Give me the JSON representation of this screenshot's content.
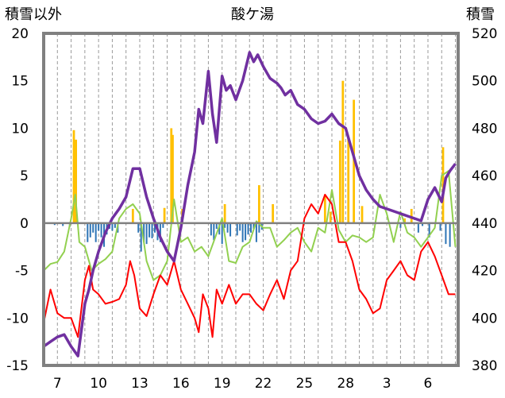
{
  "chart_data": {
    "type": "line",
    "title": "酸ケ湯",
    "ylabel_left": "積雪以外",
    "ylabel_right": "積雪",
    "ylim_left": [
      -15,
      20
    ],
    "ylim_right": [
      380,
      520
    ],
    "y_ticks_left": [
      -15,
      -10,
      -5,
      0,
      5,
      10,
      15,
      20
    ],
    "y_ticks_right": [
      380,
      400,
      420,
      440,
      460,
      480,
      500,
      520
    ],
    "x_tick_labels": [
      "7",
      "10",
      "13",
      "16",
      "19",
      "22",
      "25",
      "28",
      "3",
      "6"
    ],
    "x_tick_days": [
      1,
      4,
      7,
      10,
      13,
      16,
      19,
      22,
      25,
      28
    ],
    "x_range_days": [
      0,
      30.2
    ],
    "grid": "vertical dashed at each day",
    "colors": {
      "snow_depth": "#7030a0",
      "temp_max": "#92d050",
      "temp_min": "#ff0000",
      "snowfall": "#ffc000",
      "snow_change_negative": "#2e75b6",
      "zero_line": "#808080",
      "frame": "#808080"
    },
    "series": [
      {
        "key": "snow_depth",
        "axis": "right",
        "style": "line",
        "x": [
          0,
          0.5,
          1,
          1.5,
          2,
          2.5,
          3,
          3.3,
          3.6,
          4,
          4.5,
          5,
          5.5,
          6,
          6.5,
          7,
          7.5,
          8,
          8.5,
          9,
          9.5,
          10,
          10.5,
          11,
          11.3,
          11.6,
          12,
          12.3,
          12.6,
          13,
          13.3,
          13.6,
          14,
          14.5,
          15,
          15.3,
          15.6,
          16,
          16.5,
          17,
          17.3,
          17.6,
          18,
          18.5,
          19,
          19.5,
          20,
          20.5,
          21,
          21.5,
          22,
          22.5,
          23,
          23.5,
          24,
          24.5,
          25,
          25.5,
          26,
          26.5,
          27,
          27.5,
          28,
          28.5,
          29,
          29.3,
          29.6,
          30
        ],
        "values": [
          388,
          390,
          392,
          393,
          388,
          384,
          406,
          412,
          420,
          428,
          436,
          442,
          446,
          451,
          463,
          463,
          451,
          442,
          434,
          428,
          424,
          438,
          456,
          470,
          488,
          482,
          504,
          486,
          474,
          502,
          496,
          498,
          492,
          500,
          512,
          508,
          511,
          506,
          501,
          499,
          497,
          494,
          496,
          490,
          488,
          484,
          482,
          483,
          486,
          482,
          480,
          470,
          460,
          454,
          450,
          447,
          446,
          445,
          444,
          443,
          442,
          441,
          450,
          455,
          449,
          459,
          462,
          465
        ]
      },
      {
        "key": "temp_max",
        "axis": "left",
        "style": "line",
        "x": [
          0,
          0.5,
          1,
          1.5,
          2,
          2.3,
          2.6,
          3,
          3.5,
          4,
          4.5,
          5,
          5.5,
          6,
          6.5,
          7,
          7.5,
          8,
          8.5,
          9,
          9.5,
          10,
          10.5,
          11,
          11.5,
          12,
          12.5,
          13,
          13.5,
          14,
          14.5,
          15,
          15.5,
          16,
          16.5,
          17,
          17.5,
          18,
          18.5,
          19,
          19.5,
          20,
          20.5,
          21,
          21.5,
          22,
          22.5,
          23,
          23.5,
          24,
          24.5,
          25,
          25.5,
          26,
          26.5,
          27,
          27.5,
          28,
          28.5,
          29,
          29.5,
          30
        ],
        "values": [
          -5,
          -4.3,
          -4.1,
          -3,
          0.5,
          3,
          -2,
          -2.5,
          -5,
          -4.3,
          -3.8,
          -3,
          0.5,
          1.5,
          2,
          1,
          -4,
          -6,
          -5.5,
          -4,
          2.5,
          -2,
          -1.5,
          -3,
          -2.5,
          -3.5,
          -1.5,
          0.5,
          -4,
          -4.2,
          -2.5,
          -2,
          0.2,
          -0.5,
          -0.5,
          -2.5,
          -1.8,
          -1,
          -0.5,
          -2,
          -3,
          -0.5,
          -1,
          3.5,
          -0.7,
          -2,
          -1.3,
          -1.5,
          -2,
          -1.5,
          3,
          1,
          -2,
          1.2,
          -1,
          -1.5,
          -2.5,
          -1.5,
          -0.5,
          5,
          5.5,
          -2.5
        ]
      },
      {
        "key": "temp_min",
        "axis": "left",
        "style": "line",
        "x": [
          0,
          0.5,
          1,
          1.5,
          2,
          2.5,
          3,
          3.3,
          3.6,
          4,
          4.5,
          5,
          5.5,
          6,
          6.3,
          6.6,
          7,
          7.5,
          8,
          8.5,
          9,
          9.5,
          10,
          10.5,
          11,
          11.3,
          11.6,
          12,
          12.3,
          12.6,
          13,
          13.5,
          14,
          14.5,
          15,
          15.5,
          16,
          16.5,
          17,
          17.5,
          18,
          18.5,
          19,
          19.5,
          20,
          20.5,
          21,
          21.5,
          22,
          22.5,
          23,
          23.5,
          24,
          24.5,
          25,
          25.5,
          26,
          26.5,
          27,
          27.5,
          28,
          28.5,
          29,
          29.5,
          30
        ],
        "values": [
          -10.5,
          -7,
          -9.5,
          -10,
          -10,
          -12,
          -6,
          -4.5,
          -7,
          -7.5,
          -8.5,
          -8.3,
          -8,
          -6.5,
          -4,
          -5.5,
          -9,
          -9.8,
          -7.5,
          -5.5,
          -6.5,
          -4,
          -7,
          -8.5,
          -10,
          -11.5,
          -7.5,
          -9,
          -12,
          -7,
          -8.5,
          -6.5,
          -8.5,
          -7.5,
          -7.5,
          -8.5,
          -9.2,
          -7.5,
          -6,
          -8,
          -5,
          -4,
          0.5,
          2,
          1,
          3,
          2,
          -2,
          -2,
          -4,
          -7,
          -8,
          -9.5,
          -9,
          -6,
          -5,
          -4,
          -5.5,
          -6,
          -3,
          -2,
          -3.5,
          -5.5,
          -7.5,
          -7.5
        ]
      },
      {
        "key": "snowfall",
        "axis": "left",
        "style": "bars",
        "bar_width_days": 0.16,
        "x": [
          2.2,
          2.35,
          6.5,
          8.8,
          9.3,
          9.4,
          10.1,
          13.2,
          15.7,
          16.7,
          20.5,
          20.9,
          21.6,
          21.8,
          22.2,
          22.6,
          23.2,
          26.3,
          26.8,
          29.1
        ],
        "values": [
          9.8,
          8.8,
          1.5,
          1.6,
          10,
          9.3,
          1.5,
          2,
          4,
          2,
          3,
          1.2,
          8.7,
          15,
          9,
          13,
          1.8,
          0.5,
          1.5,
          8
        ]
      },
      {
        "key": "snow_change_negative",
        "axis": "left",
        "style": "bars",
        "bar_width_days": 0.1,
        "x": [
          0.8,
          1.4,
          1.9,
          3.2,
          3.4,
          3.6,
          3.8,
          4.0,
          4.2,
          4.4,
          4.6,
          4.8,
          5.0,
          5.2,
          5.4,
          6.9,
          7.1,
          7.3,
          7.5,
          7.7,
          7.9,
          8.1,
          8.3,
          8.5,
          8.7,
          12.2,
          12.4,
          12.6,
          12.8,
          13.0,
          13.2,
          13.4,
          13.6,
          14.1,
          14.3,
          14.5,
          14.7,
          14.9,
          15.1,
          15.3,
          15.5,
          15.7,
          15.9,
          26.0,
          27.3,
          27.6,
          28.1,
          28.9,
          29.3,
          29.6
        ],
        "values": [
          -0.2,
          -0.3,
          -0.4,
          -2,
          -1.5,
          -1,
          -2,
          -0.8,
          -1.5,
          -2.5,
          -1.2,
          -0.6,
          -0.8,
          -0.5,
          -1,
          -1,
          -3,
          -2,
          -2.2,
          -1.5,
          -1.6,
          -1,
          -1.8,
          -2,
          -0.5,
          -1.3,
          -1.8,
          -0.6,
          -1.2,
          -2.2,
          -0.5,
          -1,
          -1.4,
          -1.3,
          -0.8,
          -2,
          -1.8,
          -1.2,
          -1,
          -0.6,
          -2,
          -1,
          -0.7,
          -0.5,
          -1,
          -0.3,
          -1.5,
          -0.8,
          -2.2,
          -2.5
        ]
      }
    ]
  }
}
